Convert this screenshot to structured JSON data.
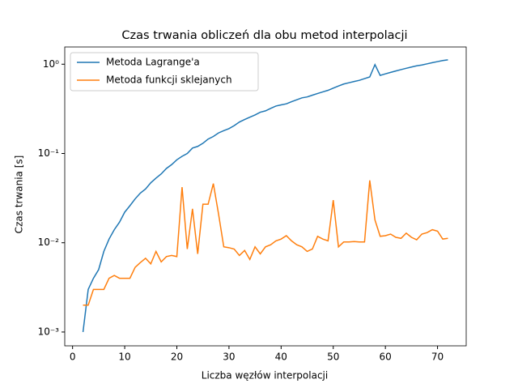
{
  "chart_data": {
    "type": "line",
    "title": "Czas trwania obliczeń dla obu metod interpolacji",
    "xlabel": "Liczba węzłów interpolacji",
    "ylabel": "Czas trwania [s]",
    "x": [
      2,
      3,
      4,
      5,
      6,
      7,
      8,
      9,
      10,
      11,
      12,
      13,
      14,
      15,
      16,
      17,
      18,
      19,
      20,
      21,
      22,
      23,
      24,
      25,
      26,
      27,
      28,
      29,
      30,
      31,
      32,
      33,
      34,
      35,
      36,
      37,
      38,
      39,
      40,
      41,
      42,
      43,
      44,
      45,
      46,
      47,
      48,
      49,
      50,
      51,
      52,
      53,
      54,
      55,
      56,
      57,
      58,
      59,
      60,
      61,
      62,
      63,
      64,
      65,
      66,
      67,
      68,
      69,
      70,
      71,
      72
    ],
    "series": [
      {
        "name": "Metoda Lagrange'a",
        "color": "#1f77b4",
        "values": [
          0.001,
          0.003,
          0.004,
          0.005,
          0.008,
          0.011,
          0.014,
          0.017,
          0.022,
          0.026,
          0.031,
          0.036,
          0.04,
          0.047,
          0.053,
          0.059,
          0.068,
          0.075,
          0.085,
          0.093,
          0.1,
          0.115,
          0.12,
          0.13,
          0.145,
          0.155,
          0.17,
          0.18,
          0.19,
          0.205,
          0.225,
          0.24,
          0.255,
          0.27,
          0.29,
          0.3,
          0.32,
          0.34,
          0.35,
          0.36,
          0.38,
          0.4,
          0.42,
          0.43,
          0.45,
          0.47,
          0.49,
          0.51,
          0.54,
          0.57,
          0.6,
          0.62,
          0.64,
          0.66,
          0.69,
          0.72,
          0.99,
          0.75,
          0.78,
          0.81,
          0.84,
          0.87,
          0.9,
          0.93,
          0.96,
          0.98,
          1.01,
          1.04,
          1.07,
          1.1,
          1.12
        ]
      },
      {
        "name": "Metoda funkcji sklejanych",
        "color": "#ff7f0e",
        "values": [
          0.002,
          0.002,
          0.003,
          0.003,
          0.003,
          0.004,
          0.0043,
          0.004,
          0.004,
          0.004,
          0.0053,
          0.006,
          0.0067,
          0.0058,
          0.008,
          0.0061,
          0.007,
          0.0072,
          0.007,
          0.042,
          0.0085,
          0.024,
          0.0075,
          0.027,
          0.027,
          0.046,
          0.021,
          0.009,
          0.0088,
          0.0085,
          0.0072,
          0.0082,
          0.0065,
          0.009,
          0.0075,
          0.009,
          0.0095,
          0.0105,
          0.011,
          0.012,
          0.0105,
          0.0095,
          0.009,
          0.008,
          0.0085,
          0.0118,
          0.011,
          0.0105,
          0.03,
          0.009,
          0.0102,
          0.0102,
          0.0103,
          0.0102,
          0.0102,
          0.05,
          0.018,
          0.0118,
          0.012,
          0.0125,
          0.0115,
          0.0112,
          0.0128,
          0.0115,
          0.0108,
          0.0125,
          0.013,
          0.014,
          0.0135,
          0.011,
          0.0112
        ]
      }
    ],
    "xlim": [
      -1.5,
      75.5
    ],
    "xticks": [
      0,
      10,
      20,
      30,
      40,
      50,
      60,
      70
    ],
    "ylim": [
      0.0007,
      1.56
    ],
    "ylog": true,
    "yticks": [
      {
        "value": 0.001,
        "label": "10⁻³"
      },
      {
        "value": 0.01,
        "label": "10⁻²"
      },
      {
        "value": 0.1,
        "label": "10⁻¹"
      },
      {
        "value": 1,
        "label": "10⁰"
      }
    ],
    "legend": "upper left"
  }
}
